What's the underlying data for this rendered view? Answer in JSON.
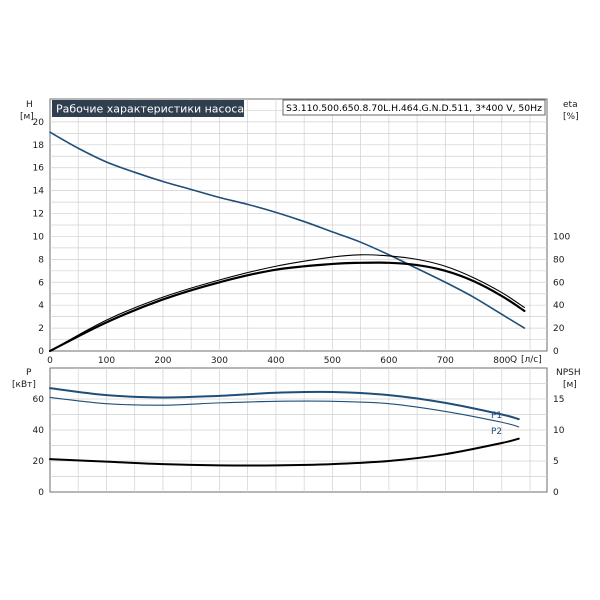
{
  "title": "Рабочие характеристики насоса",
  "model": "S3.110.500.650.8.70L.H.464.G.N.D.511, 3*400 V, 50Hz",
  "colors": {
    "accent": "#1f4e79",
    "curve": "#000000",
    "grid": "#c8c8c8",
    "title_bg": "#2f3f4f"
  },
  "chart_data": [
    {
      "type": "line",
      "id": "upper",
      "x_axis": {
        "label": "Q",
        "unit": "[л/с]",
        "range": [
          0,
          880
        ],
        "ticks": [
          0,
          100,
          200,
          300,
          400,
          500,
          600,
          700,
          800
        ]
      },
      "y_left": {
        "label": "H",
        "unit": "[м]",
        "range": [
          0,
          22
        ],
        "ticks": [
          0,
          2,
          4,
          6,
          8,
          10,
          12,
          14,
          16,
          18,
          20
        ]
      },
      "y_right": {
        "label": "eta",
        "unit": "[%]",
        "range": [
          0,
          220
        ],
        "ticks": [
          0,
          20,
          40,
          60,
          80,
          100
        ]
      },
      "grid": true,
      "series": [
        {
          "axis": "left",
          "color": "#1f4e79",
          "x": [
            0,
            50,
            100,
            150,
            200,
            250,
            300,
            350,
            400,
            450,
            500,
            550,
            600,
            650,
            700,
            750,
            800,
            840
          ],
          "y": [
            19.1,
            17.7,
            16.5,
            15.6,
            14.8,
            14.1,
            13.4,
            12.8,
            12.1,
            11.3,
            10.4,
            9.5,
            8.4,
            7.2,
            6.0,
            4.7,
            3.2,
            2.0
          ]
        },
        {
          "axis": "right",
          "color": "#000000",
          "width": 1.1,
          "x": [
            0,
            100,
            200,
            300,
            400,
            500,
            550,
            600,
            650,
            700,
            750,
            800,
            840
          ],
          "y": [
            0,
            27,
            47,
            62,
            74,
            82,
            84,
            83,
            80,
            74,
            64,
            51,
            38
          ]
        },
        {
          "axis": "right",
          "color": "#000000",
          "width": 2.2,
          "x": [
            0,
            100,
            200,
            300,
            400,
            500,
            550,
            600,
            650,
            700,
            750,
            800,
            840
          ],
          "y": [
            0,
            25,
            45,
            60,
            71,
            76,
            77,
            77,
            75,
            70,
            61,
            48,
            35
          ]
        }
      ]
    },
    {
      "type": "line",
      "id": "lower",
      "x_axis": {
        "range": [
          0,
          880
        ],
        "ticks": [
          0,
          100,
          200,
          300,
          400,
          500,
          600,
          700,
          800
        ]
      },
      "y_left": {
        "label": "P",
        "unit": "[кВт]",
        "range": [
          0,
          80
        ],
        "ticks": [
          0,
          20,
          40,
          60
        ]
      },
      "y_right": {
        "label": "NPSH",
        "unit": "[м]",
        "range": [
          0,
          20
        ],
        "ticks": [
          0,
          5,
          10,
          15
        ]
      },
      "grid": true,
      "series": [
        {
          "name": "P1",
          "axis": "left",
          "color": "#1f4e79",
          "width": 2,
          "x": [
            0,
            100,
            200,
            300,
            400,
            500,
            600,
            700,
            800,
            830
          ],
          "y": [
            67,
            62.5,
            61,
            62,
            64,
            64.5,
            62.5,
            57.5,
            50,
            47
          ]
        },
        {
          "name": "P2",
          "axis": "left",
          "color": "#1f4e79",
          "width": 1.1,
          "x": [
            0,
            100,
            200,
            300,
            400,
            500,
            600,
            700,
            800,
            830
          ],
          "y": [
            61,
            57,
            56,
            57.5,
            58.5,
            58.5,
            57,
            52,
            45,
            42
          ]
        },
        {
          "axis": "right",
          "color": "#000000",
          "width": 2,
          "x": [
            0,
            100,
            200,
            300,
            400,
            500,
            600,
            700,
            800,
            830
          ],
          "y": [
            5.3,
            4.9,
            4.5,
            4.3,
            4.3,
            4.5,
            5.0,
            6.1,
            7.9,
            8.6
          ]
        }
      ]
    }
  ]
}
